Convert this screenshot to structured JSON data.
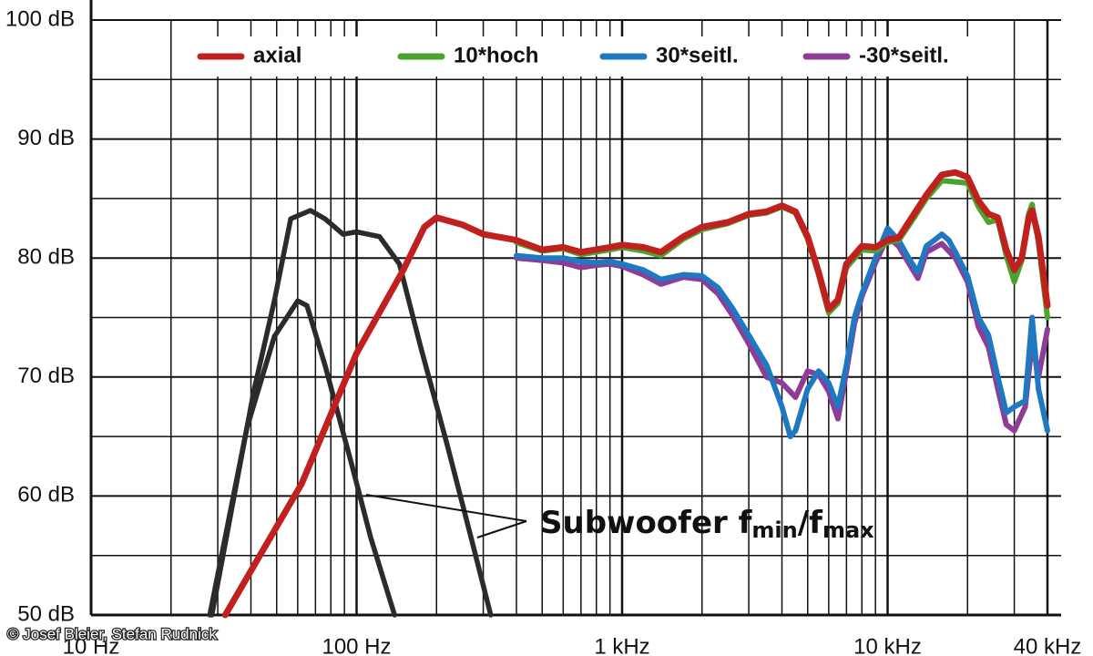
{
  "chart_data": {
    "type": "line",
    "xscale": "log",
    "xlim": [
      10,
      40000
    ],
    "ylim": [
      50,
      100
    ],
    "xticks": [
      {
        "value": 10,
        "label": "10 Hz"
      },
      {
        "value": 100,
        "label": "100 Hz"
      },
      {
        "value": 1000,
        "label": "1 kHz"
      },
      {
        "value": 10000,
        "label": "10 kHz"
      },
      {
        "value": 40000,
        "label": "40 kHz"
      }
    ],
    "xminor_ticks": [
      20,
      30,
      40,
      50,
      60,
      70,
      80,
      90,
      200,
      300,
      400,
      500,
      600,
      700,
      800,
      900,
      2000,
      3000,
      4000,
      5000,
      6000,
      7000,
      8000,
      9000,
      20000,
      30000
    ],
    "yticks": [
      {
        "value": 50,
        "label": "50 dB"
      },
      {
        "value": 60,
        "label": "60 dB"
      },
      {
        "value": 70,
        "label": "70 dB"
      },
      {
        "value": 80,
        "label": "80 dB"
      },
      {
        "value": 90,
        "label": "90 dB"
      },
      {
        "value": 100,
        "label": "100 dB"
      }
    ],
    "yminor_ticks": [
      55,
      65,
      75,
      85,
      95
    ],
    "grid": true,
    "legend": "top",
    "series": [
      {
        "name": "axial",
        "color": "#c0201e",
        "x": [
          32,
          62,
          100,
          150,
          180,
          200,
          250,
          300,
          400,
          500,
          600,
          700,
          900,
          1000,
          1200,
          1400,
          1700,
          2000,
          2500,
          3000,
          3500,
          4000,
          4500,
          5000,
          5500,
          6000,
          6500,
          7000,
          8000,
          9000,
          10000,
          11000,
          12000,
          14000,
          16000,
          18000,
          20000,
          22000,
          24000,
          26000,
          28000,
          30000,
          32000,
          34000,
          35000,
          37000,
          40000
        ],
        "values": [
          50,
          61,
          72,
          79,
          82.6,
          83.4,
          82.8,
          82,
          81.5,
          80.7,
          80.9,
          80.5,
          80.9,
          81.1,
          80.9,
          80.5,
          81.8,
          82.6,
          83,
          83.7,
          83.9,
          84.4,
          83.9,
          81.8,
          78.8,
          75.7,
          76.5,
          79.5,
          81,
          80.9,
          81.5,
          81.7,
          83,
          85.3,
          87,
          87.2,
          86.8,
          84.8,
          83.7,
          83.4,
          80.7,
          79,
          80,
          83.4,
          84,
          81.8,
          76
        ]
      },
      {
        "name": "10*hoch",
        "color": "#4aa42e",
        "x": [
          400,
          500,
          600,
          700,
          900,
          1000,
          1200,
          1400,
          1700,
          2000,
          2500,
          3000,
          3500,
          4000,
          4500,
          5000,
          5500,
          6000,
          6500,
          7000,
          8000,
          9000,
          10000,
          11000,
          12000,
          14000,
          16000,
          18000,
          20000,
          22000,
          24000,
          26000,
          28000,
          30000,
          32000,
          34000,
          35000,
          37000,
          40000
        ],
        "values": [
          81.3,
          80.6,
          80.8,
          80.3,
          80.7,
          80.9,
          80.6,
          80.2,
          81.6,
          82.4,
          82.9,
          83.6,
          83.8,
          84.3,
          83.8,
          81.6,
          78.6,
          75.4,
          76.2,
          79.2,
          80.7,
          80.6,
          81.3,
          81.5,
          82.7,
          85,
          86.5,
          86.4,
          86.3,
          84.3,
          83,
          83.2,
          80.2,
          78,
          79.8,
          83.7,
          84.5,
          81.3,
          75
        ]
      },
      {
        "name": "30*seitl.",
        "color": "#1f78c1",
        "x": [
          400,
          500,
          600,
          700,
          800,
          900,
          1000,
          1200,
          1400,
          1700,
          2000,
          2300,
          2600,
          3000,
          3500,
          4000,
          4300,
          4500,
          5000,
          5500,
          6000,
          6500,
          7000,
          7500,
          8000,
          9000,
          10000,
          11000,
          12000,
          13000,
          14000,
          15000,
          16000,
          17000,
          18000,
          20000,
          22000,
          24000,
          26000,
          28000,
          30000,
          33000,
          35000,
          37000,
          40000
        ],
        "values": [
          80.2,
          80,
          80,
          79.7,
          79.6,
          79.7,
          79.5,
          79,
          78.2,
          78.6,
          78.5,
          77.5,
          75.8,
          73.5,
          71,
          67.5,
          65,
          65.5,
          69,
          70.5,
          69.5,
          67.5,
          71,
          75,
          77,
          80,
          82.5,
          81.5,
          80,
          78.8,
          81,
          81.5,
          82,
          81.5,
          80.5,
          78.5,
          75,
          73.5,
          70,
          67,
          67.5,
          68,
          75,
          69,
          65.5
        ]
      },
      {
        "name": "-30*seitl.",
        "color": "#8e3c96",
        "x": [
          400,
          500,
          600,
          700,
          800,
          900,
          1000,
          1200,
          1400,
          1700,
          2000,
          2300,
          2600,
          3000,
          3500,
          4000,
          4500,
          5000,
          5500,
          6000,
          6500,
          7000,
          7500,
          8000,
          9000,
          10000,
          11000,
          12000,
          13000,
          14000,
          16000,
          18000,
          20000,
          22000,
          24000,
          26000,
          28000,
          30000,
          33000,
          35000,
          37000,
          40000
        ],
        "values": [
          80,
          79.8,
          79.6,
          79.2,
          79.4,
          79.5,
          79.3,
          78.6,
          77.8,
          78.4,
          78.2,
          77,
          75.2,
          72.8,
          70,
          69.5,
          68.3,
          70.5,
          70.2,
          68.8,
          66.5,
          70.5,
          74.5,
          76.8,
          79.6,
          81.8,
          81,
          79.6,
          78.3,
          80.5,
          81.2,
          80,
          78,
          74.2,
          72.5,
          69,
          66,
          65.5,
          67.5,
          73,
          70,
          74
        ]
      }
    ],
    "subwoofer_curves": [
      {
        "color": "#2b2b2b",
        "x": [
          28.5,
          41,
          49,
          56.5,
          67,
          76,
          89,
          100,
          122,
          145,
          174,
          220,
          270,
          320
        ],
        "values": [
          50,
          68.8,
          76.4,
          83.3,
          84,
          83.3,
          82,
          82.2,
          81.8,
          79.5,
          72.6,
          64.2,
          56.5,
          50
        ]
      },
      {
        "color": "#2b2b2b",
        "x": [
          28,
          38.6,
          49,
          60,
          65,
          76,
          96,
          113,
          139
        ],
        "values": [
          50,
          65.7,
          73.4,
          76.4,
          76,
          71,
          62.6,
          56.5,
          50
        ]
      }
    ],
    "annotation": [
      "Subwoofer f",
      "min",
      "/f",
      "max"
    ],
    "credit": "© Josef Bleier, Stefan Rudnick"
  }
}
